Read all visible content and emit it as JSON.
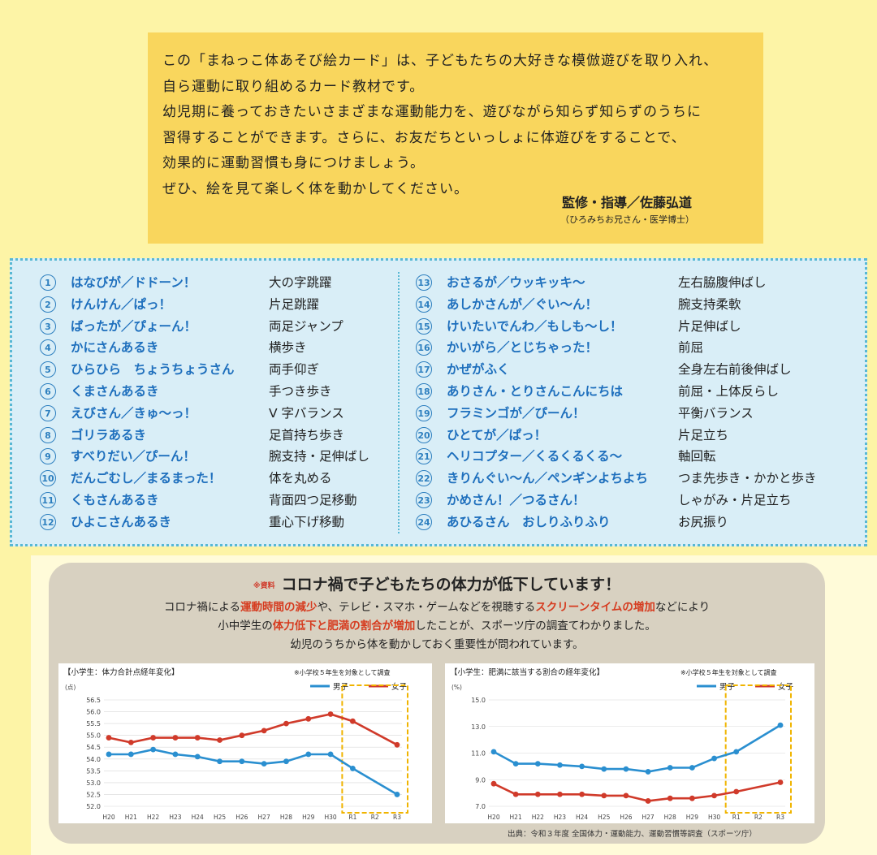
{
  "intro": {
    "lines": [
      "この「まねっこ体あそび絵カード」は、子どもたちの大好きな模倣遊びを取り入れ、",
      "自ら運動に取り組めるカード教材です。",
      "幼児期に養っておきたいさまざまな運動能力を、遊びながら知らず知らずのうちに",
      "習得することができます。さらに、お友だちといっしょに体遊びをすることで、",
      "効果的に運動習慣も身につけましょう。",
      "ぜひ、絵を見て楽しく体を動かしてください。"
    ],
    "supervisor": "監修・指導／佐藤弘道",
    "supervisor_note": "（ひろみちお兄さん・医学博士）"
  },
  "cards": {
    "left": [
      {
        "num": "1",
        "name": "はなびが／ドドーン！",
        "desc": "大の字跳躍"
      },
      {
        "num": "2",
        "name": "けんけん／ぱっ！",
        "desc": "片足跳躍"
      },
      {
        "num": "3",
        "name": "ばったが／ぴょーん！",
        "desc": "両足ジャンプ"
      },
      {
        "num": "4",
        "name": "かにさんあるき",
        "desc": "横歩き"
      },
      {
        "num": "5",
        "name": "ひらひら　ちょうちょうさん",
        "desc": "両手仰ぎ"
      },
      {
        "num": "6",
        "name": "くまさんあるき",
        "desc": "手つき歩き"
      },
      {
        "num": "7",
        "name": "えびさん／きゅ〜っ！",
        "desc": "V 字バランス"
      },
      {
        "num": "8",
        "name": "ゴリラあるき",
        "desc": "足首持ち歩き"
      },
      {
        "num": "9",
        "name": "すべりだい／ぴーん！",
        "desc": "腕支持・足伸ばし"
      },
      {
        "num": "10",
        "name": "だんごむし／まるまった！",
        "desc": "体を丸める"
      },
      {
        "num": "11",
        "name": "くもさんあるき",
        "desc": "背面四つ足移動"
      },
      {
        "num": "12",
        "name": "ひよこさんあるき",
        "desc": "重心下げ移動"
      }
    ],
    "right": [
      {
        "num": "13",
        "name": "おさるが／ウッキッキ〜",
        "desc": "左右脇腹伸ばし"
      },
      {
        "num": "14",
        "name": "あしかさんが／ぐい〜ん！",
        "desc": "腕支持柔軟"
      },
      {
        "num": "15",
        "name": "けいたいでんわ／もしも〜し！",
        "desc": "片足伸ばし"
      },
      {
        "num": "16",
        "name": "かいがら／とじちゃった！",
        "desc": "前屈"
      },
      {
        "num": "17",
        "name": "かぜがふく",
        "desc": "全身左右前後伸ばし"
      },
      {
        "num": "18",
        "name": "ありさん・とりさんこんにちは",
        "desc": "前屈・上体反らし"
      },
      {
        "num": "19",
        "name": "フラミンゴが／ぴーん！",
        "desc": "平衡バランス"
      },
      {
        "num": "20",
        "name": "ひとてが／ぱっ！",
        "desc": "片足立ち"
      },
      {
        "num": "21",
        "name": "ヘリコプター／くるくるくる〜",
        "desc": "軸回転"
      },
      {
        "num": "22",
        "name": "きりんぐい〜ん／ペンギンよちよち",
        "desc": "つま先歩き・かかと歩き"
      },
      {
        "num": "23",
        "name": "かめさん！／つるさん！",
        "desc": "しゃがみ・片足立ち"
      },
      {
        "num": "24",
        "name": "あひるさん　おしりふりふり",
        "desc": "お尻振り"
      }
    ]
  },
  "panel": {
    "tag": "※資料",
    "title": "コロナ禍で子どもたちの体力が低下しています！",
    "line1_a": "コロナ禍による",
    "line1_b": "運動時間の減少",
    "line1_c": "や、テレビ・スマホ・ゲームなどを視聴する",
    "line1_d": "スクリーンタイムの増加",
    "line1_e": "などにより",
    "line2_a": "小中学生の",
    "line2_b": "体力低下と肥満の割合が増加",
    "line2_c": "したことが、スポーツ庁の調査てわかりました。",
    "line3": "幼児のうちから体を動かしておく重要性が問われています。",
    "source": "出典：令和３年度 全国体力・運動能力、運動習慣等調査（スポーツ庁）"
  },
  "chart_data": [
    {
      "type": "line",
      "title": "【小学生：体力合計点経年変化】",
      "note": "※小学校５年生を対象として調査",
      "ylabel": "(点)",
      "categories": [
        "H20",
        "H21",
        "H22",
        "H23",
        "H24",
        "H25",
        "H26",
        "H27",
        "H28",
        "H29",
        "H30",
        "R1",
        "R2",
        "R3"
      ],
      "ylim": [
        52.0,
        56.5
      ],
      "yticks": [
        "56.5",
        "56.0",
        "55.5",
        "55.0",
        "54.5",
        "54.0",
        "53.5",
        "53.0",
        "52.5",
        "52.0"
      ],
      "highlight": [
        "R1",
        "R3"
      ],
      "series": [
        {
          "name": "男子",
          "color": "#2a8fd0",
          "values": [
            54.2,
            54.2,
            54.4,
            54.2,
            54.1,
            53.9,
            53.9,
            53.8,
            53.9,
            54.2,
            54.2,
            53.6,
            null,
            52.5
          ]
        },
        {
          "name": "女子",
          "color": "#d03a2a",
          "values": [
            54.9,
            54.7,
            54.9,
            54.9,
            54.9,
            54.8,
            55.0,
            55.2,
            55.5,
            55.7,
            55.9,
            55.6,
            null,
            54.6
          ]
        }
      ]
    },
    {
      "type": "line",
      "title": "【小学生：肥満に該当する割合の経年変化】",
      "note": "※小学校５年生を対象として調査",
      "ylabel": "(%)",
      "categories": [
        "H20",
        "H21",
        "H22",
        "H23",
        "H24",
        "H25",
        "H26",
        "H27",
        "H28",
        "H29",
        "H30",
        "R1",
        "R2",
        "R3"
      ],
      "ylim": [
        7.0,
        15.0
      ],
      "yticks": [
        "15.0",
        "13.0",
        "11.0",
        "9.0",
        "7.0"
      ],
      "highlight": [
        "R1",
        "R3"
      ],
      "series": [
        {
          "name": "男子",
          "color": "#2a8fd0",
          "values": [
            11.1,
            10.2,
            10.2,
            10.1,
            10.0,
            9.8,
            9.8,
            9.6,
            9.9,
            9.9,
            10.6,
            11.1,
            null,
            13.1
          ]
        },
        {
          "name": "女子",
          "color": "#d03a2a",
          "values": [
            8.7,
            7.9,
            7.9,
            7.9,
            7.9,
            7.8,
            7.8,
            7.4,
            7.6,
            7.6,
            7.8,
            8.1,
            null,
            8.8
          ]
        }
      ]
    }
  ]
}
